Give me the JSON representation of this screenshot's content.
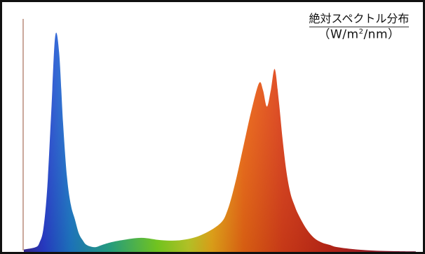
{
  "chart_data": {
    "type": "area",
    "title": "",
    "unit_label": {
      "line1": "絶対スペクトル分布",
      "line2_prefix": "（W/m",
      "line2_sup": "2",
      "line2_suffix": "/nm）"
    },
    "xlabel": "",
    "ylabel": "",
    "x_units": "relative wavelength (unlabelled)",
    "y_units": "relative intensity (unlabelled)",
    "xlim": [
      0,
      100
    ],
    "ylim": [
      0,
      100
    ],
    "grid": false,
    "fill": "visible-spectrum gradient (blue → green → yellow → orange → red)",
    "series": [
      {
        "x": [
          0,
          3,
          4,
          5,
          6,
          7,
          8,
          9,
          10,
          11,
          12,
          13,
          14,
          15,
          16,
          18,
          20,
          22,
          25,
          30,
          35,
          40,
          45,
          50,
          52,
          54,
          56,
          58,
          60,
          61,
          62,
          63,
          64,
          65,
          66,
          67,
          68,
          69,
          70,
          72,
          74,
          76,
          78,
          80,
          85,
          90,
          95,
          100
        ],
        "values": [
          1,
          2,
          4,
          10,
          28,
          60,
          92,
          85,
          55,
          32,
          20,
          14,
          8,
          5,
          3,
          2,
          3,
          4,
          5,
          6,
          5,
          5,
          7,
          12,
          18,
          30,
          45,
          60,
          72,
          69,
          62,
          69,
          78,
          65,
          48,
          34,
          25,
          20,
          16,
          10,
          6,
          4,
          3,
          2,
          1,
          0.5,
          0.3,
          0.2
        ]
      }
    ],
    "axis_line": "thin vertical line near left edge"
  }
}
